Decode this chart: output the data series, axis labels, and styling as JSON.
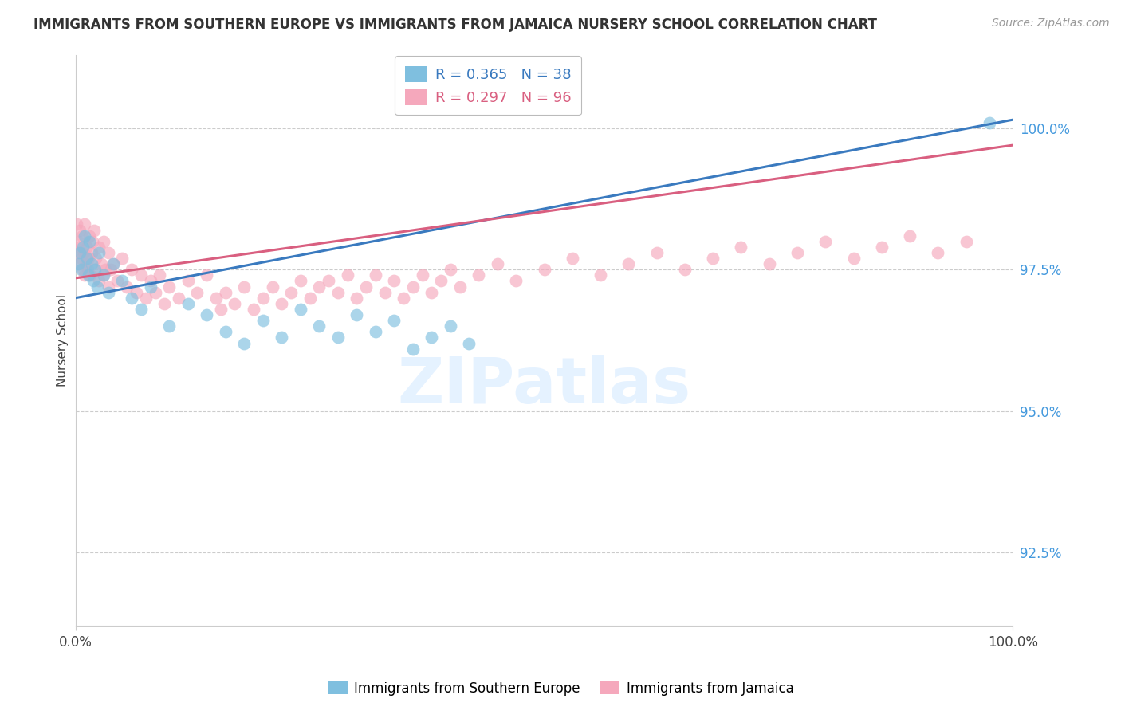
{
  "title": "IMMIGRANTS FROM SOUTHERN EUROPE VS IMMIGRANTS FROM JAMAICA NURSERY SCHOOL CORRELATION CHART",
  "source": "Source: ZipAtlas.com",
  "ylabel": "Nursery School",
  "right_yticks": [
    92.5,
    95.0,
    97.5,
    100.0
  ],
  "right_ytick_labels": [
    "92.5%",
    "95.0%",
    "97.5%",
    "100.0%"
  ],
  "legend_blue_r": "R = 0.365",
  "legend_blue_n": "N = 38",
  "legend_pink_r": "R = 0.297",
  "legend_pink_n": "N = 96",
  "legend_blue_label": "Immigrants from Southern Europe",
  "legend_pink_label": "Immigrants from Jamaica",
  "blue_color": "#7fbfdf",
  "pink_color": "#f5a8bc",
  "blue_line_color": "#3a7abf",
  "pink_line_color": "#d95f80",
  "xmin": 0.0,
  "xmax": 100.0,
  "ymin": 91.2,
  "ymax": 101.3,
  "blue_line_y0": 97.0,
  "blue_line_y1": 100.15,
  "pink_line_y0": 97.35,
  "pink_line_y1": 99.7,
  "blue_dots_x": [
    0.3,
    0.5,
    0.6,
    0.8,
    1.0,
    1.2,
    1.4,
    1.5,
    1.7,
    1.9,
    2.1,
    2.3,
    2.5,
    3.0,
    3.5,
    4.0,
    5.0,
    6.0,
    7.0,
    8.0,
    10.0,
    12.0,
    14.0,
    16.0,
    18.0,
    20.0,
    22.0,
    24.0,
    26.0,
    28.0,
    30.0,
    32.0,
    34.0,
    36.0,
    38.0,
    40.0,
    42.0,
    97.5
  ],
  "blue_dots_y": [
    97.6,
    97.8,
    97.5,
    97.9,
    98.1,
    97.7,
    97.4,
    98.0,
    97.6,
    97.3,
    97.5,
    97.2,
    97.8,
    97.4,
    97.1,
    97.6,
    97.3,
    97.0,
    96.8,
    97.2,
    96.5,
    96.9,
    96.7,
    96.4,
    96.2,
    96.6,
    96.3,
    96.8,
    96.5,
    96.3,
    96.7,
    96.4,
    96.6,
    96.1,
    96.3,
    96.5,
    96.2,
    100.1
  ],
  "pink_dots_x": [
    0.1,
    0.2,
    0.3,
    0.4,
    0.5,
    0.5,
    0.6,
    0.7,
    0.8,
    0.9,
    1.0,
    1.0,
    1.1,
    1.2,
    1.3,
    1.4,
    1.5,
    1.6,
    1.7,
    1.8,
    2.0,
    2.0,
    2.2,
    2.5,
    2.5,
    2.8,
    3.0,
    3.0,
    3.2,
    3.5,
    3.5,
    3.8,
    4.0,
    4.5,
    5.0,
    5.5,
    6.0,
    6.5,
    7.0,
    7.5,
    8.0,
    8.5,
    9.0,
    9.5,
    10.0,
    11.0,
    12.0,
    13.0,
    14.0,
    15.0,
    15.5,
    16.0,
    17.0,
    18.0,
    19.0,
    20.0,
    21.0,
    22.0,
    23.0,
    24.0,
    25.0,
    26.0,
    27.0,
    28.0,
    29.0,
    30.0,
    31.0,
    32.0,
    33.0,
    34.0,
    35.0,
    36.0,
    37.0,
    38.0,
    39.0,
    40.0,
    41.0,
    43.0,
    45.0,
    47.0,
    50.0,
    53.0,
    56.0,
    59.0,
    62.0,
    65.0,
    68.0,
    71.0,
    74.0,
    77.0,
    80.0,
    83.0,
    86.0,
    89.0,
    92.0,
    95.0
  ],
  "pink_dots_y": [
    98.3,
    97.8,
    98.0,
    97.9,
    98.2,
    97.6,
    97.7,
    98.1,
    97.5,
    97.8,
    98.3,
    97.4,
    97.6,
    97.9,
    97.5,
    97.7,
    98.1,
    97.4,
    97.8,
    98.0,
    98.2,
    97.5,
    97.7,
    97.9,
    97.3,
    97.6,
    98.0,
    97.4,
    97.5,
    97.8,
    97.2,
    97.5,
    97.6,
    97.3,
    97.7,
    97.2,
    97.5,
    97.1,
    97.4,
    97.0,
    97.3,
    97.1,
    97.4,
    96.9,
    97.2,
    97.0,
    97.3,
    97.1,
    97.4,
    97.0,
    96.8,
    97.1,
    96.9,
    97.2,
    96.8,
    97.0,
    97.2,
    96.9,
    97.1,
    97.3,
    97.0,
    97.2,
    97.3,
    97.1,
    97.4,
    97.0,
    97.2,
    97.4,
    97.1,
    97.3,
    97.0,
    97.2,
    97.4,
    97.1,
    97.3,
    97.5,
    97.2,
    97.4,
    97.6,
    97.3,
    97.5,
    97.7,
    97.4,
    97.6,
    97.8,
    97.5,
    97.7,
    97.9,
    97.6,
    97.8,
    98.0,
    97.7,
    97.9,
    98.1,
    97.8,
    98.0
  ]
}
